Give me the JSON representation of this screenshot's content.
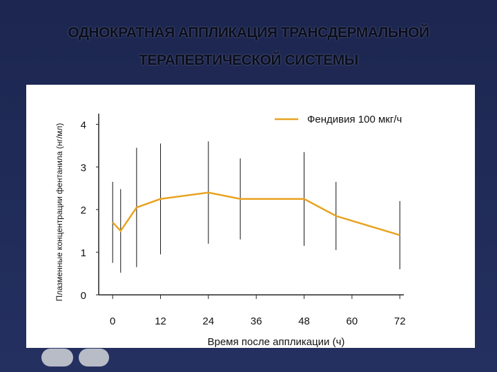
{
  "chart_data": {
    "type": "line",
    "title": "ОДНОКРАТНАЯ АППЛИКАЦИЯ ТРАНСДЕРМАЛЬНОЙ",
    "subtitle": "ТЕРАПЕВТИЧЕСКОЙ СИСТЕМЫ",
    "x_label": "Время после аппликации  (ч)",
    "y_label": "Плазменные концентрации фентанила (нг/мл)",
    "x": [
      0,
      2,
      6,
      12,
      24,
      32,
      48,
      56,
      72
    ],
    "series": [
      {
        "name": "Фендивия 100 мкг/ч",
        "color": "#e8a21f",
        "values": [
          1.7,
          1.5,
          2.05,
          2.25,
          2.4,
          2.25,
          2.25,
          1.85,
          1.4
        ],
        "errors": [
          0.95,
          0.98,
          1.4,
          1.3,
          1.2,
          0.95,
          1.1,
          0.8,
          0.8
        ]
      }
    ],
    "xlim": [
      -3.5,
      73
    ],
    "xticks": [
      0,
      12,
      24,
      36,
      48,
      60,
      72
    ],
    "ylim": [
      0,
      4.25
    ],
    "yticks": [
      0,
      1,
      2,
      3,
      4
    ],
    "legend": "top-right",
    "grid": false
  }
}
